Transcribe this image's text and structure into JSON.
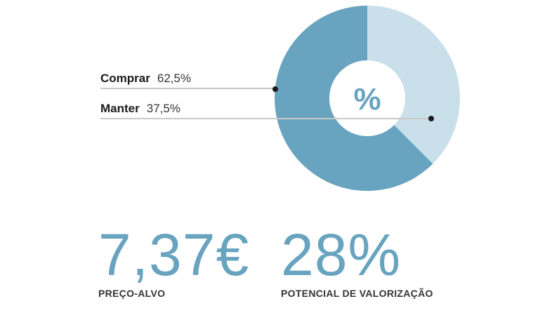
{
  "chart_data": {
    "type": "pie",
    "center_label": "%",
    "slices": [
      {
        "name": "Comprar",
        "value": 62.5,
        "label": "62,5%",
        "color": "#68a3bf"
      },
      {
        "name": "Manter",
        "value": 37.5,
        "label": "37,5%",
        "color": "#c9dfea"
      }
    ]
  },
  "colors": {
    "accent": "#68a3bf",
    "text": "#1e1e1e",
    "leader": "#c8c8c8"
  },
  "stats": {
    "price_target": {
      "value": "7,37€",
      "caption": "PREÇO-ALVO"
    },
    "upside": {
      "value": "28%",
      "caption": "POTENCIAL DE VALORIZAÇÃO"
    }
  }
}
